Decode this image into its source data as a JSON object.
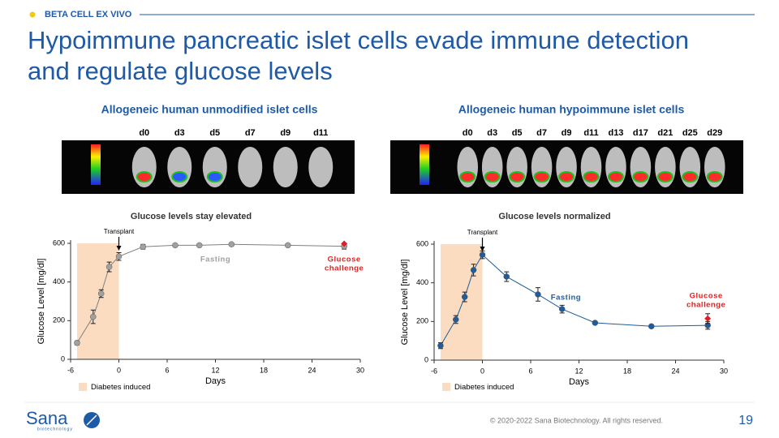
{
  "header": {
    "section": "BETA CELL EX VIVO",
    "title": "Hypoimmune pancreatic islet cells evade immune detection and regulate glucose levels"
  },
  "panels": [
    {
      "heading": "Allogeneic human unmodified islet cells",
      "days": [
        "d0",
        "d3",
        "d5",
        "d7",
        "d9",
        "d11"
      ]
    },
    {
      "heading": "Allogeneic human hypoimmune islet cells",
      "days": [
        "d0",
        "d3",
        "d5",
        "d7",
        "d9",
        "d11",
        "d13",
        "d17",
        "d21",
        "d25",
        "d29"
      ]
    }
  ],
  "chart_data": [
    {
      "type": "line",
      "title": "Glucose levels stay elevated",
      "x_label": "Days",
      "y_label": "Glucose Level [mg/dl]",
      "x": [
        -5.2,
        -3.2,
        -2.2,
        -1.2,
        0,
        3,
        7,
        10,
        14,
        21,
        28
      ],
      "values": [
        85,
        220,
        340,
        478,
        532,
        582,
        590,
        590,
        595,
        590,
        585
      ],
      "errors": [
        10,
        35,
        20,
        25,
        20,
        12,
        8,
        8,
        8,
        8,
        15
      ],
      "color": "#a0a0a0",
      "line_color": "#808080",
      "xlim": [
        -6,
        30
      ],
      "xticks": [
        -6,
        0,
        6,
        12,
        18,
        24,
        30
      ],
      "ylim": [
        0,
        600
      ],
      "yticks": [
        0,
        200,
        400,
        600
      ],
      "shaded_region": {
        "range": [
          -6,
          0
        ],
        "label": "Diabetes induced",
        "color": "#fbdcc0"
      },
      "transplant": {
        "x": 0,
        "label": "Transplant"
      },
      "fasting_label": "Fasting",
      "fasting_color": "#a0a0a0",
      "challenge": {
        "x": 28,
        "value": 598,
        "label": [
          "Glucose",
          "challenge"
        ],
        "color": "#e02020"
      }
    },
    {
      "type": "line",
      "title": "Glucose levels normalized",
      "x_label": "Days",
      "y_label": "Glucose Level [mg/dl]",
      "x": [
        -5.2,
        -3.3,
        -2.2,
        -1.1,
        0,
        3,
        6.9,
        9.9,
        14,
        21,
        28
      ],
      "values": [
        75,
        210,
        327,
        466,
        545,
        432,
        340,
        264,
        193,
        175,
        180
      ],
      "errors": [
        15,
        20,
        25,
        30,
        20,
        25,
        35,
        20,
        8,
        8,
        20
      ],
      "color": "#1f5c99",
      "line_color": "#1f5c99",
      "xlim": [
        -6,
        30
      ],
      "xticks": [
        -6,
        0,
        6,
        12,
        18,
        24,
        30
      ],
      "ylim": [
        0,
        600
      ],
      "yticks": [
        0,
        200,
        400,
        600
      ],
      "shaded_region": {
        "range": [
          -6,
          0
        ],
        "label": "Diabetes induced",
        "color": "#fbdcc0"
      },
      "transplant": {
        "x": 0,
        "label": "Transplant"
      },
      "fasting_label": "Fasting",
      "fasting_color": "#1f5c99",
      "challenge": {
        "x": 28,
        "value": 215,
        "error": 25,
        "label": [
          "Glucose",
          "challenge"
        ],
        "color": "#e02020"
      }
    }
  ],
  "footer": {
    "logo": "Sana",
    "logo_sub": "biotechnology",
    "copyright": "© 2020-2022 Sana Biotechnology. All rights reserved.",
    "page": "19"
  }
}
